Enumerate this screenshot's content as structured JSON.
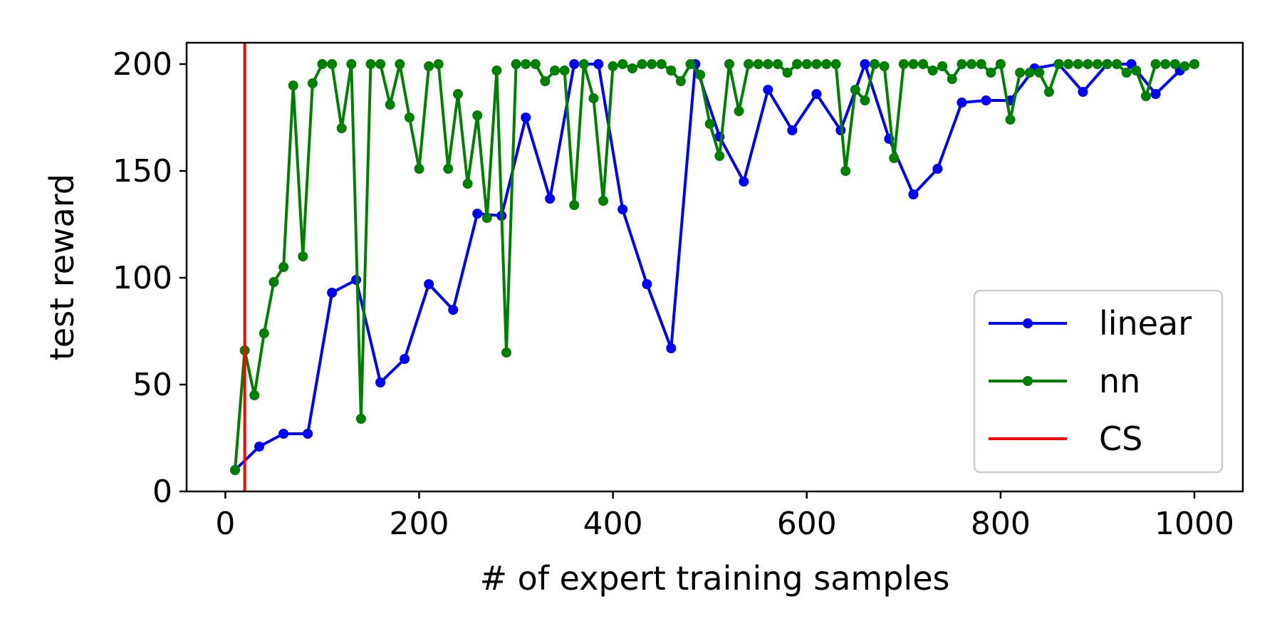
{
  "chart_data": {
    "type": "line",
    "title": "",
    "xlabel": "# of expert training samples",
    "ylabel": "test reward",
    "xlim": [
      -40,
      1050
    ],
    "ylim": [
      0,
      210
    ],
    "xticks": [
      0,
      200,
      400,
      600,
      800,
      1000
    ],
    "yticks": [
      0,
      50,
      100,
      150,
      200
    ],
    "grid": false,
    "legend_position": "lower-right",
    "series": [
      {
        "name": "linear",
        "color": "#0000ff",
        "marker": "circle",
        "x": [
          10,
          35,
          60,
          85,
          110,
          135,
          160,
          185,
          210,
          235,
          260,
          285,
          310,
          335,
          360,
          385,
          410,
          435,
          460,
          485,
          510,
          535,
          560,
          585,
          610,
          635,
          660,
          685,
          710,
          735,
          760,
          785,
          810,
          835,
          860,
          885,
          910,
          935,
          960,
          985
        ],
        "y": [
          10,
          21,
          27,
          27,
          93,
          99,
          51,
          62,
          97,
          85,
          130,
          129,
          175,
          137,
          200,
          200,
          132,
          97,
          67,
          200,
          166,
          145,
          188,
          169,
          186,
          169,
          200,
          165,
          139,
          151,
          182,
          183,
          183,
          198,
          200,
          187,
          200,
          200,
          186,
          197
        ]
      },
      {
        "name": "nn",
        "color": "#008000",
        "marker": "circle",
        "x": [
          10,
          20,
          30,
          40,
          50,
          60,
          70,
          80,
          90,
          100,
          110,
          120,
          130,
          140,
          150,
          160,
          170,
          180,
          190,
          200,
          210,
          220,
          230,
          240,
          250,
          260,
          270,
          280,
          290,
          300,
          310,
          320,
          330,
          340,
          350,
          360,
          370,
          380,
          390,
          400,
          410,
          420,
          430,
          440,
          450,
          460,
          470,
          480,
          490,
          500,
          510,
          520,
          530,
          540,
          550,
          560,
          570,
          580,
          590,
          600,
          610,
          620,
          630,
          640,
          650,
          660,
          670,
          680,
          690,
          700,
          710,
          720,
          730,
          740,
          750,
          760,
          770,
          780,
          790,
          800,
          810,
          820,
          830,
          840,
          850,
          860,
          870,
          880,
          890,
          900,
          910,
          920,
          930,
          940,
          950,
          960,
          970,
          980,
          990,
          1000
        ],
        "y": [
          10,
          66,
          45,
          74,
          98,
          105,
          190,
          110,
          191,
          200,
          200,
          170,
          200,
          34,
          200,
          200,
          181,
          200,
          175,
          151,
          199,
          200,
          151,
          186,
          144,
          176,
          128,
          197,
          65,
          200,
          200,
          200,
          192,
          197,
          197,
          134,
          200,
          184,
          136,
          199,
          200,
          198,
          200,
          200,
          200,
          197,
          192,
          200,
          195,
          172,
          157,
          200,
          178,
          200,
          200,
          200,
          200,
          196,
          200,
          200,
          200,
          200,
          200,
          150,
          188,
          183,
          200,
          199,
          156,
          200,
          200,
          200,
          197,
          199,
          193,
          200,
          200,
          200,
          196,
          200,
          174,
          196,
          196,
          196,
          187,
          200,
          200,
          200,
          200,
          200,
          200,
          200,
          196,
          197,
          185,
          200,
          200,
          200,
          199,
          200
        ]
      }
    ],
    "vlines": [
      {
        "name": "CS",
        "color": "#ff0000",
        "x": 20
      }
    ],
    "legend": [
      {
        "label": "linear",
        "color": "#0000ff",
        "marker": true
      },
      {
        "label": "nn",
        "color": "#008000",
        "marker": true
      },
      {
        "label": "CS",
        "color": "#ff0000",
        "marker": false
      }
    ]
  }
}
